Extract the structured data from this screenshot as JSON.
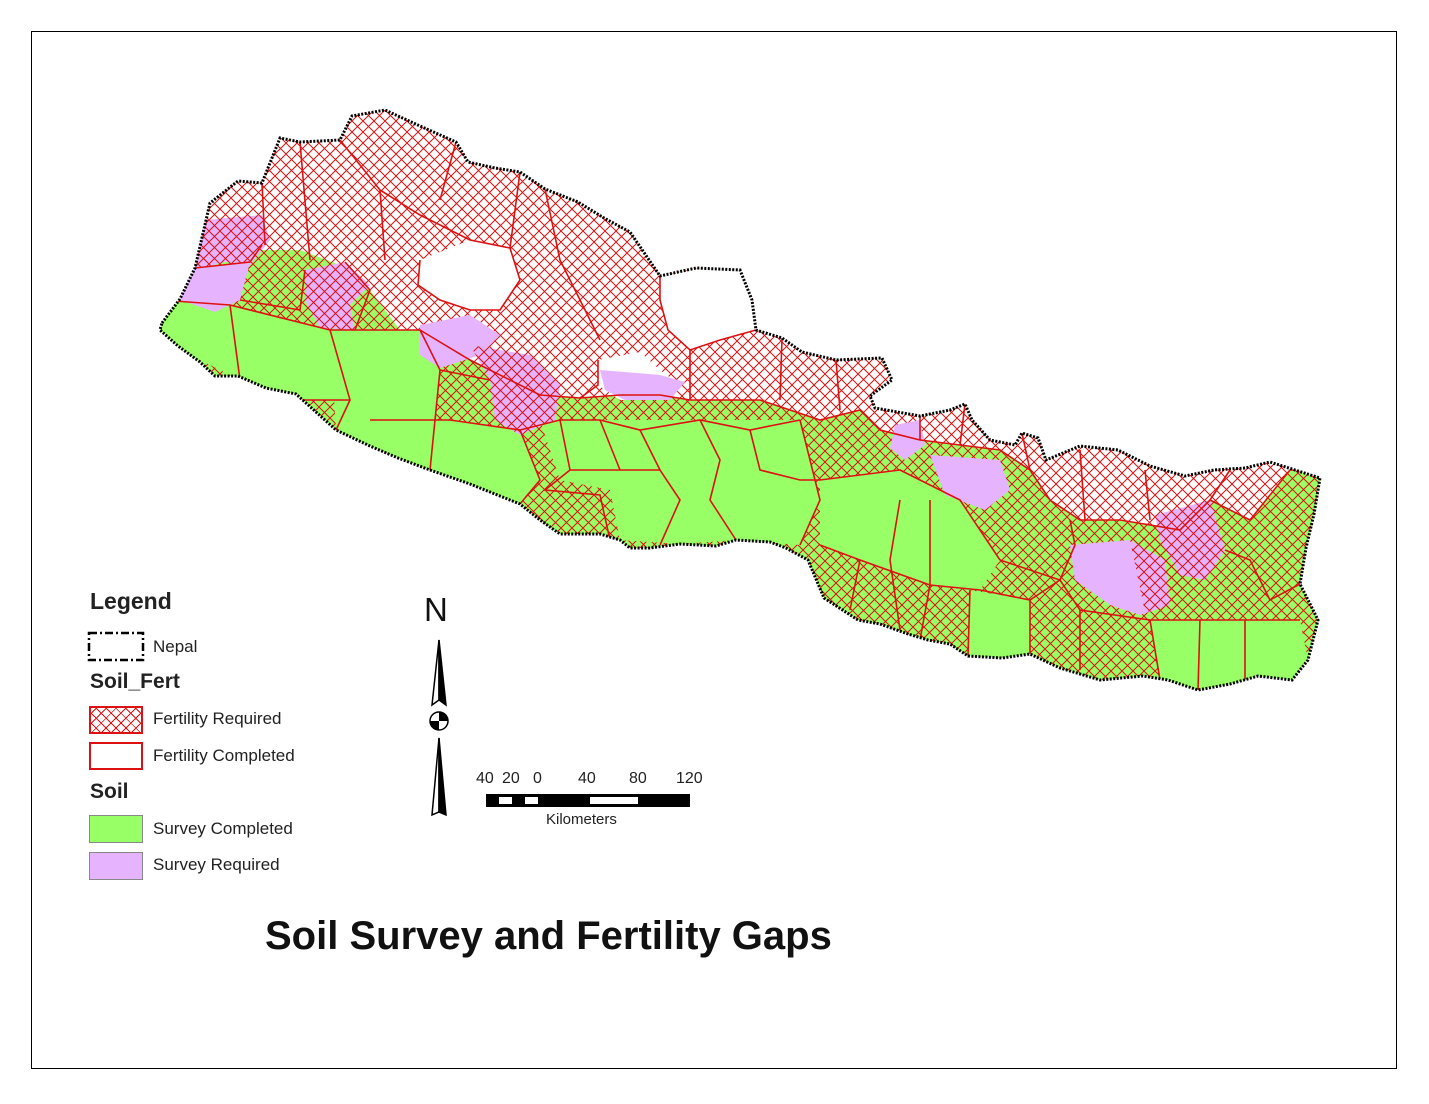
{
  "title": "Soil Survey and Fertility Gaps",
  "legend": {
    "heading": "Legend",
    "boundary": {
      "label": "Nepal"
    },
    "soil_fert": {
      "heading": "Soil_Fert",
      "items": [
        {
          "label": "Fertility Required",
          "pattern": "red-crosshatch"
        },
        {
          "label": "Fertility Completed",
          "pattern": "red-outline"
        }
      ]
    },
    "soil": {
      "heading": "Soil",
      "items": [
        {
          "label": "Survey Completed",
          "color": "#99ff66"
        },
        {
          "label": "Survey Required",
          "color": "#e6b3ff"
        }
      ]
    }
  },
  "north_arrow": {
    "label": "N"
  },
  "scale_bar": {
    "ticks": [
      "40",
      "20",
      "0",
      "40",
      "80",
      "120"
    ],
    "unit": "Kilometers"
  },
  "colors": {
    "survey_completed": "#99ff66",
    "survey_required": "#e6b3ff",
    "fertility_boundary": "#dd1111",
    "country_border": "#000000"
  }
}
